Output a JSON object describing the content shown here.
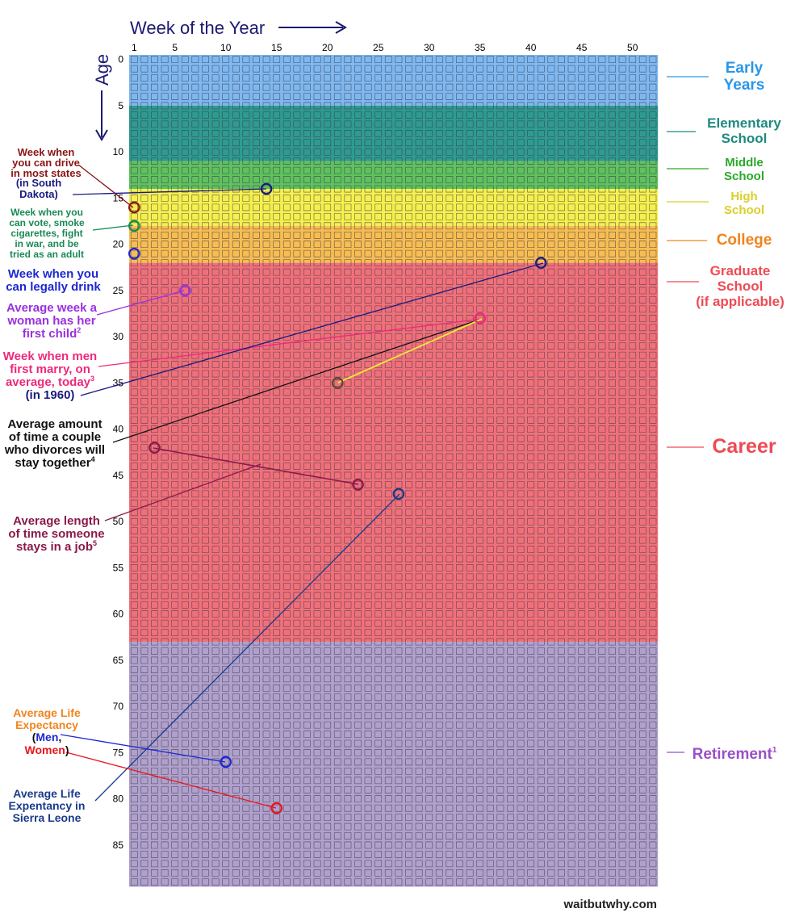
{
  "header": {
    "week_axis_title": "Week of the Year",
    "age_axis_title": "Age",
    "arrow_right": "⟶",
    "arrow_down": "↓"
  },
  "week_ticks": [
    "1",
    "5",
    "10",
    "15",
    "20",
    "25",
    "30",
    "35",
    "40",
    "45",
    "50"
  ],
  "age_ticks": [
    "0",
    "5",
    "10",
    "15",
    "20",
    "25",
    "30",
    "35",
    "40",
    "45",
    "50",
    "55",
    "60",
    "65",
    "70",
    "75",
    "80",
    "85"
  ],
  "grid": {
    "weeks": 52,
    "years": 90
  },
  "stages": [
    {
      "key": "early",
      "lines": [
        "Early",
        "Years"
      ],
      "start_year": 0,
      "end_year": 5.5,
      "color": "#7fb8f0",
      "text_color": "#2a96e8"
    },
    {
      "key": "elementary",
      "lines": [
        "Elementary",
        "School"
      ],
      "start_year": 5.5,
      "end_year": 11.5,
      "color": "#2e9a90",
      "text_color": "#1e8a80"
    },
    {
      "key": "middle",
      "lines": [
        "Middle",
        "School"
      ],
      "start_year": 11.5,
      "end_year": 14.5,
      "color": "#5fc15f",
      "text_color": "#2aaa2a"
    },
    {
      "key": "high",
      "lines": [
        "High",
        "School"
      ],
      "start_year": 14.5,
      "end_year": 18.5,
      "color": "#f5f04e",
      "text_color": "#d9d02a"
    },
    {
      "key": "college",
      "lines": [
        "College"
      ],
      "start_year": 18.5,
      "end_year": 22.5,
      "color": "#f7bd52",
      "text_color": "#f0841e"
    },
    {
      "key": "grad",
      "lines": [
        "Graduate",
        "School",
        "(if applicable)"
      ],
      "start_year": 22.5,
      "end_year": 24.5,
      "color": "#f0707a",
      "text_color": "#ee4b55"
    },
    {
      "key": "career",
      "lines": [
        "Career"
      ],
      "start_year": 24.5,
      "end_year": 63.5,
      "color": "#f0707a",
      "text_color": "#ee4b55"
    },
    {
      "key": "retirement",
      "lines": [
        "Retirement"
      ],
      "sup": "1",
      "start_year": 63.5,
      "end_year": 90,
      "color": "#b0a0cc",
      "text_color": "#9a50c8"
    }
  ],
  "annotations": [
    {
      "key": "drive",
      "lines": [
        "Week when",
        "you can drive",
        "in most states"
      ],
      "color": "#8a1414"
    },
    {
      "key": "sd",
      "lines": [
        "(in South",
        "Dakota)"
      ],
      "color": "#1a1a80"
    },
    {
      "key": "vote",
      "lines": [
        "Week when you",
        "can vote, smoke",
        "cigarettes, fight",
        "in war, and be",
        "tried as an adult"
      ],
      "color": "#1a8a55"
    },
    {
      "key": "drink",
      "lines": [
        "Week when you",
        "can legally drink"
      ],
      "color": "#1c28d0"
    },
    {
      "key": "child",
      "lines": [
        "Average week a",
        "woman has her",
        "first child"
      ],
      "sup": "2",
      "color": "#9a30e0"
    },
    {
      "key": "marry",
      "lines": [
        "Week when men",
        "first marry, on",
        "average, today"
      ],
      "sup": "3",
      "color": "#f0287a"
    },
    {
      "key": "marry1960",
      "lines": [
        "(in 1960)"
      ],
      "color": "#1a1a80"
    },
    {
      "key": "divorce",
      "lines": [
        "Average amount",
        "of time a couple",
        "who divorces will",
        "stay together"
      ],
      "sup": "4",
      "color": "#111111"
    },
    {
      "key": "job",
      "lines": [
        "Average length",
        "of time someone",
        "stays in a job"
      ],
      "sup": "5",
      "color": "#8a1a4a"
    },
    {
      "key": "life",
      "lines": [
        "Average Life",
        "Expectancy"
      ],
      "color": "#f0841e"
    },
    {
      "key": "sierra",
      "lines": [
        "Average Life",
        "Expentancy in",
        "Sierra Leone"
      ],
      "color": "#1a3a8a"
    }
  ],
  "life_expectancy": {
    "open": "(",
    "men": "Men",
    "sep": ",",
    "women": "Women",
    "close": ")",
    "men_color": "#1c28d0",
    "women_color": "#e8161c"
  },
  "markers": [
    {
      "key": "drive",
      "week": 1,
      "age": 16,
      "color": "#8a1414"
    },
    {
      "key": "sd",
      "week": 14,
      "age": 14,
      "color": "#1a1a80"
    },
    {
      "key": "vote",
      "week": 1,
      "age": 18,
      "color": "#1a8a55"
    },
    {
      "key": "drink",
      "week": 1,
      "age": 21,
      "color": "#1c28d0"
    },
    {
      "key": "child",
      "week": 6,
      "age": 25,
      "color": "#9a30e0"
    },
    {
      "key": "marry",
      "week": 35,
      "age": 28,
      "color": "#f0287a"
    },
    {
      "key": "marry1960",
      "week": 41,
      "age": 22,
      "color": "#1a1a80"
    },
    {
      "key": "divorce",
      "week": 21,
      "age": 35,
      "color": "#5a4a3a"
    },
    {
      "key": "job_a",
      "week": 3,
      "age": 42,
      "color": "#8a1a4a"
    },
    {
      "key": "job_b",
      "week": 23,
      "age": 46,
      "color": "#8a1a4a"
    },
    {
      "key": "sierra",
      "week": 27,
      "age": 47,
      "color": "#1a3a8a"
    },
    {
      "key": "men",
      "week": 10,
      "age": 76,
      "color": "#1c28d0"
    },
    {
      "key": "women",
      "week": 15,
      "age": 81,
      "color": "#e8161c"
    }
  ],
  "credit": "waitbutwhy.com"
}
